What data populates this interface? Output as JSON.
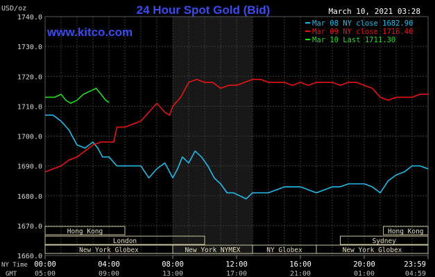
{
  "header": {
    "title": "24 Hour Spot Gold (Bid)",
    "unit_label": "USD/oz",
    "timestamp": "March 10, 2021 03:28",
    "watermark": "www.kitco.com"
  },
  "legend": [
    {
      "label": "Mar 08 NY close 1682.90",
      "color": "#22bbe8"
    },
    {
      "label": "Mar 09 NY close 1716.40",
      "color": "#e81414"
    },
    {
      "label": "Mar 10 Last 1711.30",
      "color": "#22dd22"
    }
  ],
  "markets": [
    {
      "name": "Hong Kong",
      "row": 0,
      "start": 0.0,
      "end": 5.0
    },
    {
      "name": "Hong Kong",
      "row": 0,
      "start": 21.2,
      "end": 24.0
    },
    {
      "name": "London",
      "row": 1,
      "start": 0.0,
      "end": 10.0
    },
    {
      "name": "Sydney",
      "row": 1,
      "start": 18.5,
      "end": 24.0
    },
    {
      "name": "New York Globex",
      "row": 2,
      "start": 0.0,
      "end": 8.0
    },
    {
      "name": "New York NYMEX",
      "row": 2,
      "start": 8.0,
      "end": 13.0
    },
    {
      "name": "NY Globex",
      "row": 2,
      "start": 13.0,
      "end": 17.0
    },
    {
      "name": "New York Globex",
      "row": 2,
      "start": 17.0,
      "end": 24.0
    }
  ],
  "time_axis": {
    "ny_label": "NY Time",
    "gmt_label": "GMT",
    "ny_ticks": [
      "00:00",
      "04:00",
      "08:00",
      "12:00",
      "16:00",
      "20:00",
      "23:59"
    ],
    "gmt_ticks": [
      "05:00",
      "09:00",
      "13:00",
      "17:00",
      "21:00",
      "01:00",
      "04:59"
    ]
  },
  "chart_data": {
    "type": "line",
    "title": "24 Hour Spot Gold (Bid)",
    "ylabel": "USD/oz",
    "ylim": [
      1660,
      1740
    ],
    "yticks": [
      "1740.0",
      "1730.0",
      "1720.0",
      "1710.0",
      "1700.0",
      "1690.0",
      "1680.0",
      "1670.0",
      "1660.0"
    ],
    "xlim": [
      0,
      24
    ],
    "x_unit": "hours (NY time)",
    "shaded_range": [
      8.0,
      13.0
    ],
    "grid": true,
    "series": [
      {
        "name": "Mar 08 NY close 1682.90",
        "color": "#22bbe8",
        "points": [
          [
            0,
            1707
          ],
          [
            0.5,
            1707
          ],
          [
            1.0,
            1705
          ],
          [
            1.5,
            1702
          ],
          [
            2.0,
            1697
          ],
          [
            2.5,
            1696
          ],
          [
            3.0,
            1698
          ],
          [
            3.3,
            1696
          ],
          [
            3.6,
            1693
          ],
          [
            4.0,
            1693
          ],
          [
            4.5,
            1690
          ],
          [
            5.0,
            1690
          ],
          [
            5.5,
            1690
          ],
          [
            6.0,
            1690
          ],
          [
            6.5,
            1686
          ],
          [
            7.0,
            1689
          ],
          [
            7.5,
            1691
          ],
          [
            8.0,
            1686
          ],
          [
            8.3,
            1689
          ],
          [
            8.6,
            1693
          ],
          [
            9.0,
            1691
          ],
          [
            9.4,
            1695
          ],
          [
            9.8,
            1693
          ],
          [
            10.2,
            1690
          ],
          [
            10.6,
            1686
          ],
          [
            11.0,
            1684
          ],
          [
            11.4,
            1681
          ],
          [
            11.8,
            1681
          ],
          [
            12.2,
            1680
          ],
          [
            12.6,
            1679
          ],
          [
            13.0,
            1681
          ],
          [
            13.5,
            1681
          ],
          [
            14.0,
            1681
          ],
          [
            14.5,
            1682
          ],
          [
            15.0,
            1683
          ],
          [
            15.5,
            1683
          ],
          [
            16.0,
            1683
          ],
          [
            16.5,
            1682
          ],
          [
            17.0,
            1681
          ],
          [
            17.5,
            1682
          ],
          [
            18.0,
            1683
          ],
          [
            18.5,
            1683
          ],
          [
            19.0,
            1684
          ],
          [
            19.5,
            1684
          ],
          [
            20.0,
            1684
          ],
          [
            20.5,
            1683
          ],
          [
            21.0,
            1681
          ],
          [
            21.5,
            1685
          ],
          [
            22.0,
            1687
          ],
          [
            22.5,
            1688
          ],
          [
            23.0,
            1690
          ],
          [
            23.5,
            1690
          ],
          [
            24.0,
            1689
          ]
        ]
      },
      {
        "name": "Mar 09 NY close 1716.40",
        "color": "#e81414",
        "points": [
          [
            0,
            1688
          ],
          [
            0.5,
            1689
          ],
          [
            1.0,
            1690
          ],
          [
            1.5,
            1692
          ],
          [
            2.0,
            1693
          ],
          [
            2.5,
            1695
          ],
          [
            3.0,
            1697
          ],
          [
            3.5,
            1698
          ],
          [
            4.0,
            1698
          ],
          [
            4.3,
            1698
          ],
          [
            4.5,
            1703
          ],
          [
            5.0,
            1703
          ],
          [
            5.5,
            1704
          ],
          [
            6.0,
            1705
          ],
          [
            6.5,
            1708
          ],
          [
            7.0,
            1711
          ],
          [
            7.5,
            1708
          ],
          [
            7.8,
            1707
          ],
          [
            8.0,
            1710
          ],
          [
            8.5,
            1713
          ],
          [
            9.0,
            1718
          ],
          [
            9.5,
            1719
          ],
          [
            10.0,
            1718
          ],
          [
            10.5,
            1718
          ],
          [
            11.0,
            1716
          ],
          [
            11.5,
            1717
          ],
          [
            12.0,
            1717
          ],
          [
            12.5,
            1718
          ],
          [
            13.0,
            1719
          ],
          [
            13.5,
            1719
          ],
          [
            14.0,
            1718
          ],
          [
            14.5,
            1718
          ],
          [
            15.0,
            1718
          ],
          [
            15.5,
            1717
          ],
          [
            16.0,
            1718
          ],
          [
            16.5,
            1717
          ],
          [
            17.0,
            1718
          ],
          [
            17.5,
            1718
          ],
          [
            18.0,
            1718
          ],
          [
            18.5,
            1717
          ],
          [
            19.0,
            1718
          ],
          [
            19.5,
            1718
          ],
          [
            20.0,
            1717
          ],
          [
            20.5,
            1716
          ],
          [
            21.0,
            1713
          ],
          [
            21.5,
            1712
          ],
          [
            22.0,
            1713
          ],
          [
            22.5,
            1713
          ],
          [
            23.0,
            1713
          ],
          [
            23.5,
            1714
          ],
          [
            24.0,
            1714
          ]
        ]
      },
      {
        "name": "Mar 10 Last 1711.30",
        "color": "#22dd22",
        "points": [
          [
            0,
            1713
          ],
          [
            0.3,
            1713
          ],
          [
            0.6,
            1713
          ],
          [
            1.0,
            1714
          ],
          [
            1.3,
            1712
          ],
          [
            1.6,
            1711
          ],
          [
            2.0,
            1712
          ],
          [
            2.4,
            1714
          ],
          [
            2.8,
            1715
          ],
          [
            3.2,
            1716
          ],
          [
            3.5,
            1714
          ],
          [
            3.8,
            1712
          ],
          [
            4.0,
            1711.3
          ]
        ]
      }
    ]
  }
}
